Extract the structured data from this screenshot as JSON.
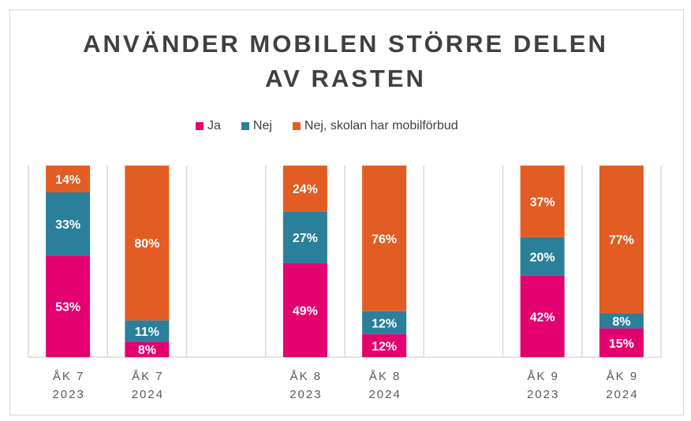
{
  "chart_data": {
    "type": "bar",
    "stacked": true,
    "normalized_percent": true,
    "title_lines": [
      "ANVÄNDER MOBILEN STÖRRE DELEN",
      "AV RASTEN"
    ],
    "categories": [
      [
        "ÅK 7",
        "2023"
      ],
      [
        "ÅK 7",
        "2024"
      ],
      null,
      [
        "ÅK 8",
        "2023"
      ],
      [
        "ÅK 8",
        "2024"
      ],
      null,
      [
        "ÅK 9",
        "2023"
      ],
      [
        "ÅK 9",
        "2024"
      ]
    ],
    "series": [
      {
        "name": "Ja",
        "color": "#e5006f",
        "values": [
          53,
          8,
          null,
          49,
          12,
          null,
          42,
          15
        ]
      },
      {
        "name": "Nej",
        "color": "#2a7f9a",
        "values": [
          33,
          11,
          null,
          27,
          12,
          null,
          20,
          8
        ]
      },
      {
        "name": "Nej, skolan har mobilförbud",
        "color": "#e35c23",
        "values": [
          14,
          80,
          null,
          24,
          76,
          null,
          37,
          77
        ]
      }
    ],
    "value_format": "%",
    "legend_position": "top",
    "grid": "vertical separators",
    "ylim": [
      0,
      100
    ]
  }
}
